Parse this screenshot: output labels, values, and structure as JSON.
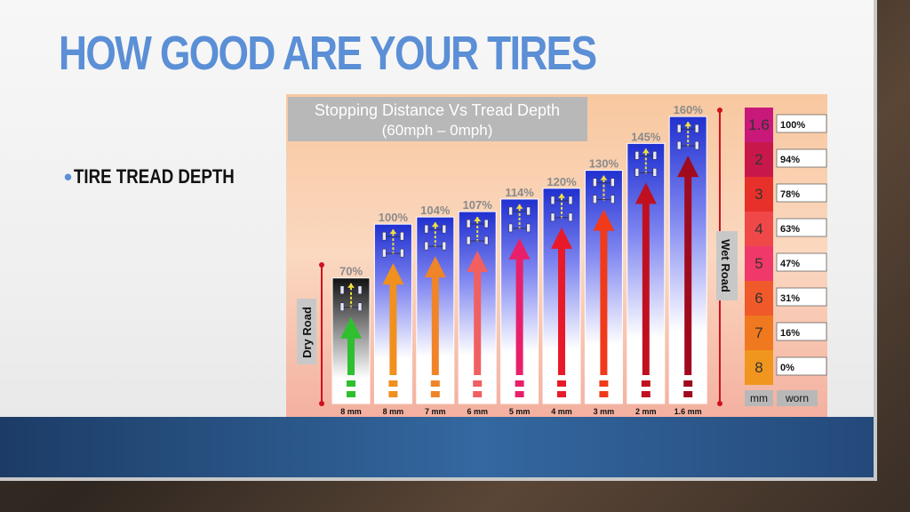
{
  "slide": {
    "title": "HOW GOOD ARE YOUR TIRES",
    "bullet": "TIRE TREAD DEPTH"
  },
  "chart_data": {
    "type": "bar",
    "title": "Stopping Distance Vs Tread Depth",
    "subtitle": "(60mph – 0mph)",
    "categories": [
      "8 mm",
      "8 mm",
      "7 mm",
      "6 mm",
      "5 mm",
      "4 mm",
      "3 mm",
      "2 mm",
      "1.6 mm"
    ],
    "values": [
      70,
      100,
      104,
      107,
      114,
      120,
      130,
      145,
      160
    ],
    "labels": [
      "70%",
      "100%",
      "104%",
      "107%",
      "114%",
      "120%",
      "130%",
      "145%",
      "160%"
    ],
    "ylim": [
      0,
      165
    ],
    "left_label": "Dry Road",
    "right_label": "Wet Road",
    "arrow_colors": [
      "#2fbf2f",
      "#f0901e",
      "#f08428",
      "#f06060",
      "#e8206a",
      "#e81a2a",
      "#f03a1a",
      "#c01020",
      "#a00a1e"
    ],
    "legend": {
      "rows": [
        {
          "mm": "1.6",
          "worn": "100%",
          "color": "#c8187a"
        },
        {
          "mm": "2",
          "worn": "94%",
          "color": "#c8184a"
        },
        {
          "mm": "3",
          "worn": "78%",
          "color": "#e8302a"
        },
        {
          "mm": "4",
          "worn": "63%",
          "color": "#f04848"
        },
        {
          "mm": "5",
          "worn": "47%",
          "color": "#f0386a"
        },
        {
          "mm": "6",
          "worn": "31%",
          "color": "#f05a2a"
        },
        {
          "mm": "7",
          "worn": "16%",
          "color": "#f0781e"
        },
        {
          "mm": "8",
          "worn": "0%",
          "color": "#f0961e"
        }
      ],
      "col_mm": "mm",
      "col_worn": "worn"
    }
  }
}
